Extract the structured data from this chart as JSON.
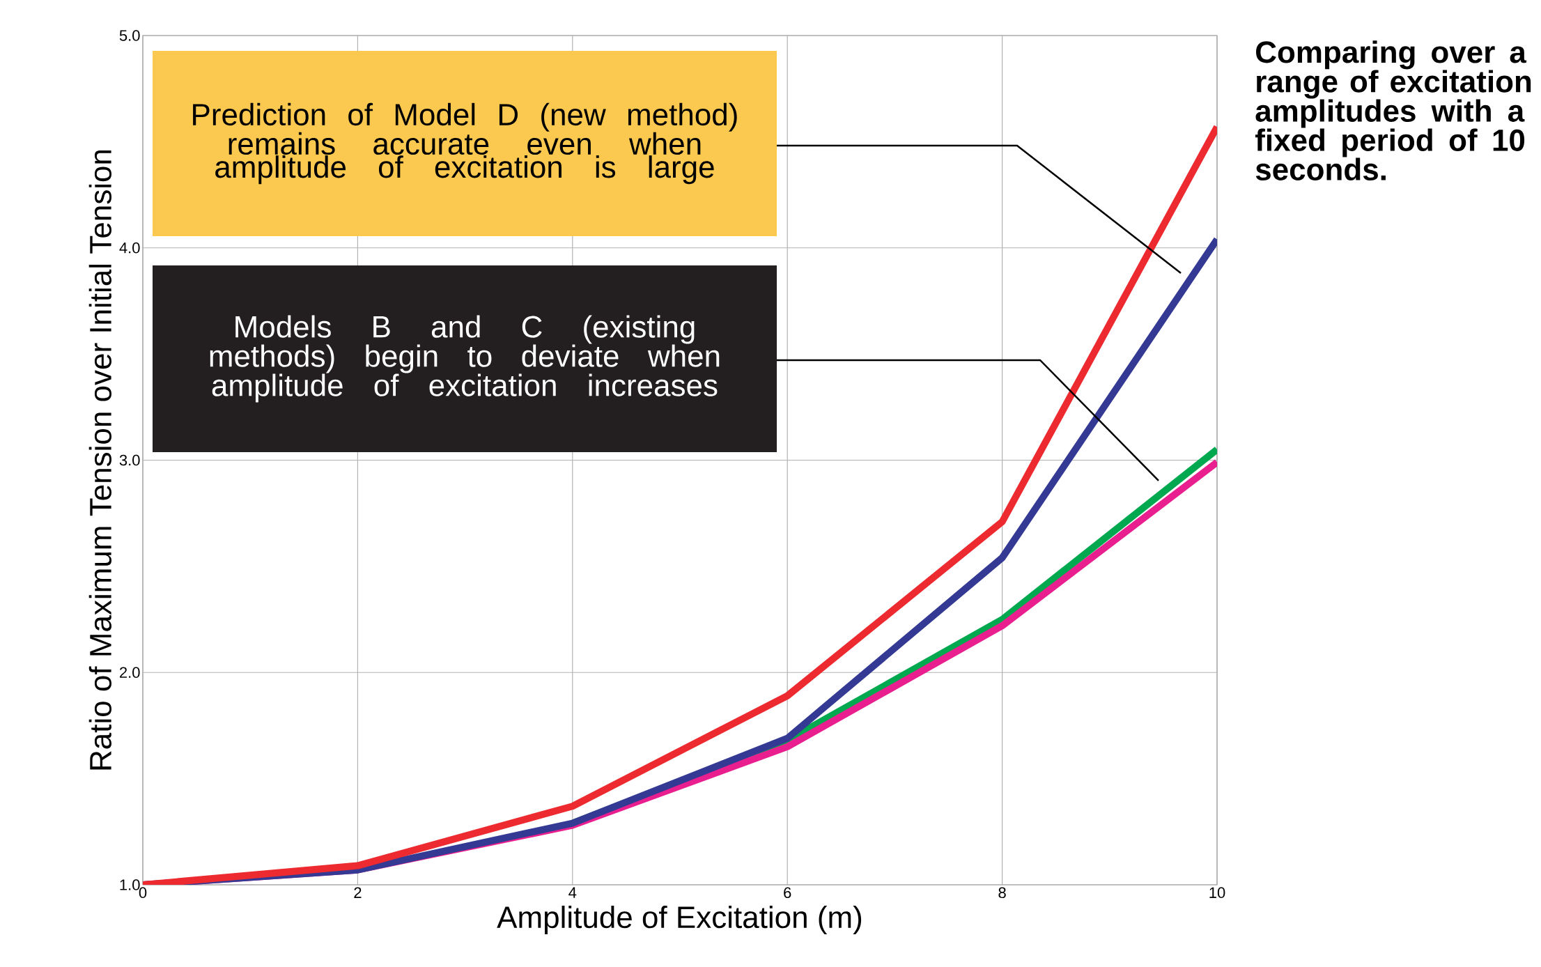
{
  "chart_data": {
    "type": "line",
    "xlabel": "Amplitude of Excitation (m)",
    "ylabel": "Ratio of Maximum Tension over Initial Tension",
    "x": [
      0,
      2,
      4,
      6,
      8,
      10
    ],
    "series": [
      {
        "color": "#00a84f",
        "values": [
          null,
          null,
          1.29,
          1.68,
          2.25,
          3.05
        ]
      },
      {
        "color": "#ea1f8f",
        "values": [
          1.0,
          1.07,
          1.28,
          1.65,
          2.22,
          2.99
        ]
      },
      {
        "color": "#343a94",
        "values": [
          1.0,
          1.07,
          1.29,
          1.69,
          2.54,
          4.04
        ]
      },
      {
        "color": "#ed2a2f",
        "values": [
          1.0,
          1.09,
          1.37,
          1.89,
          2.71,
          4.57
        ]
      }
    ],
    "xlim": [
      0,
      10
    ],
    "xticks": [
      0,
      2,
      4,
      6,
      8,
      10
    ],
    "ylim": [
      1,
      5
    ],
    "yticks": [
      {
        "value": 1,
        "label": "1.0"
      },
      {
        "value": 2,
        "label": "2.0"
      },
      {
        "value": 3,
        "label": "3.0"
      },
      {
        "value": 4,
        "label": "4.0"
      },
      {
        "value": 5,
        "label": "5.0"
      }
    ],
    "grid": true,
    "marker": "none",
    "line_style": "solid",
    "annotations": [
      "Prediction of Model D (new method) remains accurate even when amplitude of excitation is large",
      "Models B and C (existing methods) begin to deviate when amplitude of excitation increases",
      "Comparing over a range of excitation amplitudes with a fixed period of 10 seconds."
    ]
  }
}
